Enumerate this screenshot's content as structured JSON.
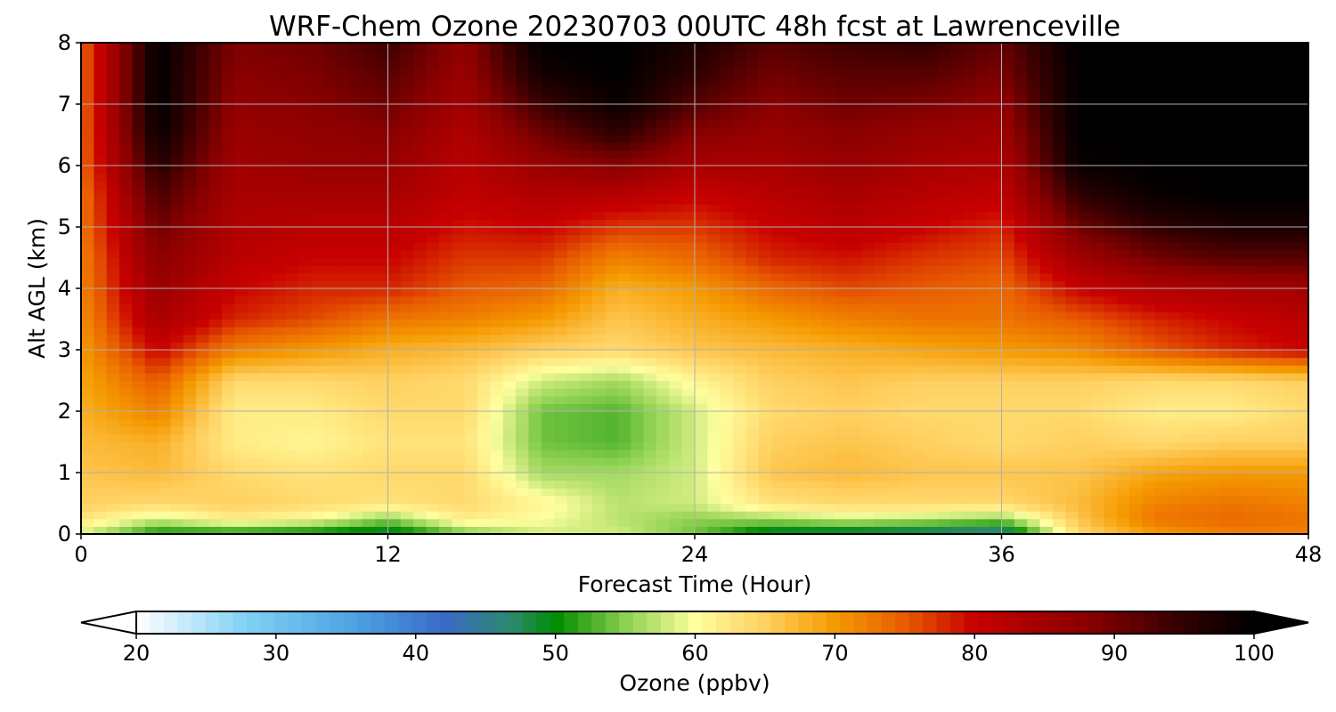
{
  "chart_data": {
    "type": "heatmap",
    "title": "WRF-Chem Ozone  20230703 00UTC 48h fcst at Lawrenceville",
    "xlabel": "Forecast Time (Hour)",
    "ylabel": "Alt AGL (km)",
    "xlim": [
      0,
      48
    ],
    "ylim": [
      0,
      8
    ],
    "x_ticks": [
      "0",
      "12",
      "24",
      "36",
      "48"
    ],
    "y_ticks": [
      "0",
      "1",
      "2",
      "3",
      "4",
      "5",
      "6",
      "7",
      "8"
    ],
    "grid": true,
    "x": [
      0,
      3,
      6,
      9,
      12,
      15,
      18,
      21,
      24,
      27,
      30,
      33,
      36,
      39,
      42,
      45,
      48
    ],
    "y": [
      0,
      0.25,
      0.5,
      1,
      1.5,
      2,
      2.5,
      3,
      3.5,
      4,
      4.5,
      5,
      5.5,
      6,
      6.5,
      7,
      7.5,
      8
    ],
    "z": [
      [
        58,
        50,
        50,
        49,
        47,
        54,
        58,
        58,
        54,
        47,
        46,
        45,
        44,
        64,
        70,
        72,
        72
      ],
      [
        63,
        58,
        62,
        60,
        55,
        62,
        60,
        57,
        55,
        56,
        58,
        57,
        55,
        66,
        73,
        74,
        73
      ],
      [
        65,
        64,
        65,
        64,
        63,
        64,
        61,
        57,
        58,
        63,
        64,
        64,
        64,
        67,
        72,
        73,
        72
      ],
      [
        66,
        67,
        64,
        63,
        64,
        64,
        56,
        56,
        58,
        66,
        67,
        66,
        66,
        66,
        69,
        70,
        70
      ],
      [
        67,
        68,
        62,
        61,
        63,
        63,
        54,
        53,
        58,
        65,
        66,
        65,
        64,
        65,
        64,
        65,
        65
      ],
      [
        68,
        72,
        62,
        62,
        64,
        64,
        54,
        53,
        58,
        64,
        65,
        64,
        64,
        64,
        62,
        62,
        64
      ],
      [
        69,
        75,
        64,
        64,
        65,
        64,
        58,
        56,
        61,
        65,
        66,
        65,
        65,
        65,
        64,
        64,
        65
      ],
      [
        70,
        80,
        72,
        70,
        68,
        67,
        65,
        64,
        66,
        67,
        68,
        69,
        70,
        71,
        75,
        78,
        80
      ],
      [
        71,
        84,
        78,
        76,
        73,
        72,
        70,
        66,
        68,
        70,
        72,
        73,
        73,
        75,
        78,
        80,
        82
      ],
      [
        72,
        86,
        80,
        78,
        78,
        75,
        74,
        68,
        70,
        74,
        76,
        75,
        74,
        80,
        83,
        84,
        85
      ],
      [
        72,
        88,
        82,
        80,
        80,
        77,
        77,
        72,
        74,
        78,
        79,
        77,
        76,
        85,
        90,
        92,
        92
      ],
      [
        73,
        90,
        83,
        82,
        82,
        79,
        80,
        77,
        77,
        80,
        82,
        80,
        78,
        90,
        95,
        97,
        97
      ],
      [
        73,
        93,
        84,
        84,
        84,
        81,
        83,
        82,
        80,
        82,
        84,
        82,
        81,
        95,
        99,
        100,
        100
      ],
      [
        74,
        96,
        85,
        86,
        86,
        82,
        86,
        88,
        84,
        84,
        86,
        84,
        83,
        99,
        100,
        100,
        100
      ],
      [
        74,
        99,
        86,
        87,
        88,
        83,
        90,
        95,
        88,
        86,
        88,
        86,
        85,
        100,
        100,
        100,
        100
      ],
      [
        74,
        100,
        87,
        88,
        90,
        85,
        94,
        99,
        92,
        88,
        90,
        89,
        87,
        100,
        100,
        100,
        100
      ],
      [
        74,
        100,
        88,
        89,
        92,
        86,
        98,
        100,
        95,
        90,
        92,
        92,
        89,
        100,
        100,
        100,
        100
      ],
      [
        74,
        100,
        89,
        90,
        94,
        87,
        100,
        100,
        97,
        92,
        94,
        95,
        91,
        100,
        100,
        100,
        100
      ]
    ],
    "colorbar": {
      "label": "Ozone  (ppbv)",
      "min": 20,
      "max": 100,
      "ticks": [
        "20",
        "30",
        "40",
        "50",
        "60",
        "70",
        "80",
        "90",
        "100"
      ],
      "extend": "both",
      "levels": 81
    },
    "colormap_stops": [
      [
        20,
        "#ffffff"
      ],
      [
        28,
        "#7fd0f4"
      ],
      [
        36,
        "#4aa0e0"
      ],
      [
        42,
        "#3a6ac8"
      ],
      [
        47,
        "#2a8a6a"
      ],
      [
        50,
        "#008c00"
      ],
      [
        55,
        "#8cd050"
      ],
      [
        60,
        "#ffffa0"
      ],
      [
        65,
        "#ffd060"
      ],
      [
        70,
        "#f59a00"
      ],
      [
        75,
        "#e85c00"
      ],
      [
        80,
        "#c80000"
      ],
      [
        88,
        "#8a0000"
      ],
      [
        95,
        "#300000"
      ],
      [
        100,
        "#000000"
      ]
    ]
  }
}
